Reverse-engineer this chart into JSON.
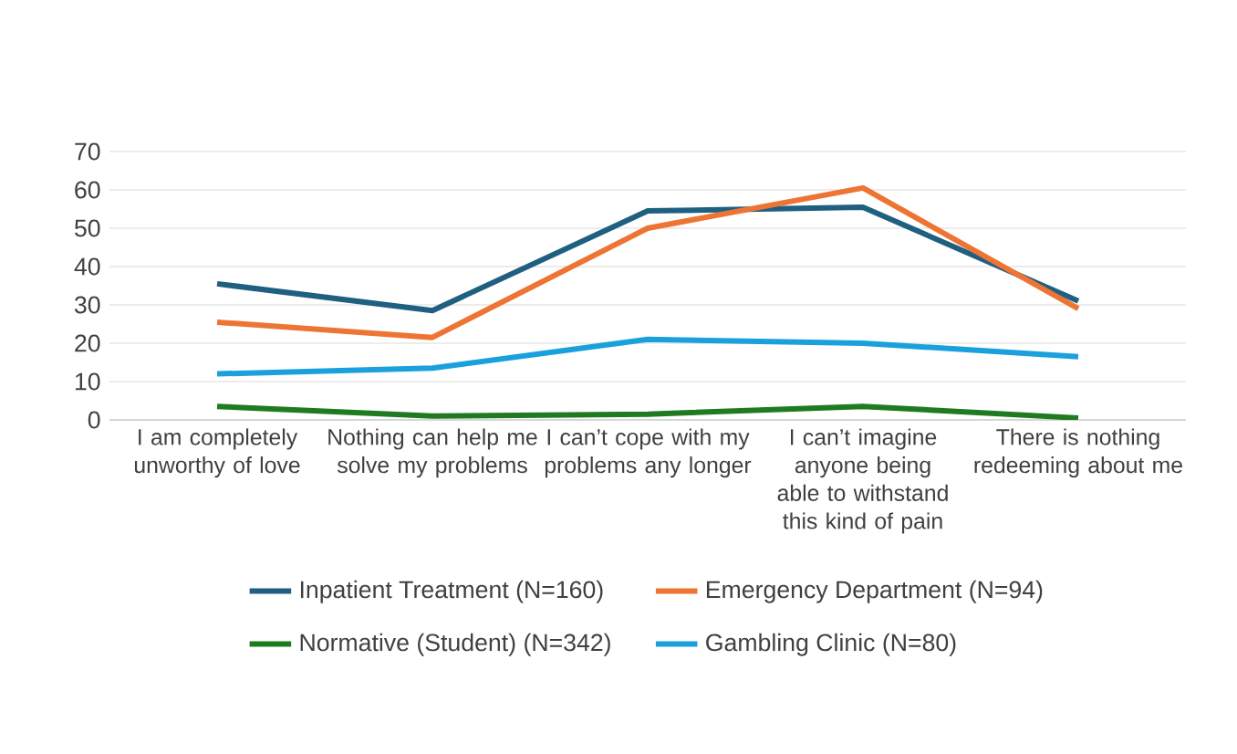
{
  "chart_data": {
    "type": "line",
    "categories": [
      "I am completely unworthy of love",
      "Nothing can help me solve my problems",
      "I can’t cope with my problems any longer",
      "I can’t imagine anyone being able to withstand this kind of pain",
      "There is nothing redeeming about me"
    ],
    "series": [
      {
        "name": "Inpatient Treatment (N=160)",
        "color": "#1f5f80",
        "values": [
          35.5,
          28.5,
          54.5,
          55.5,
          31
        ]
      },
      {
        "name": "Emergency Department (N=94)",
        "color": "#ee7434",
        "values": [
          25.5,
          21.5,
          50,
          60.5,
          29
        ]
      },
      {
        "name": "Normative (Student) (N=342)",
        "color": "#1f7a22",
        "values": [
          3.5,
          1,
          1.5,
          3.5,
          0.5
        ]
      },
      {
        "name": "Gambling Clinic (N=80)",
        "color": "#1aa0dc",
        "values": [
          12,
          13.5,
          21,
          20,
          16.5
        ]
      }
    ],
    "ylim": [
      0,
      70
    ],
    "yticks": [
      0,
      10,
      20,
      30,
      40,
      50,
      60,
      70
    ],
    "grid": "y",
    "legend": "bottom",
    "marker": "none",
    "line_style": "solid"
  }
}
